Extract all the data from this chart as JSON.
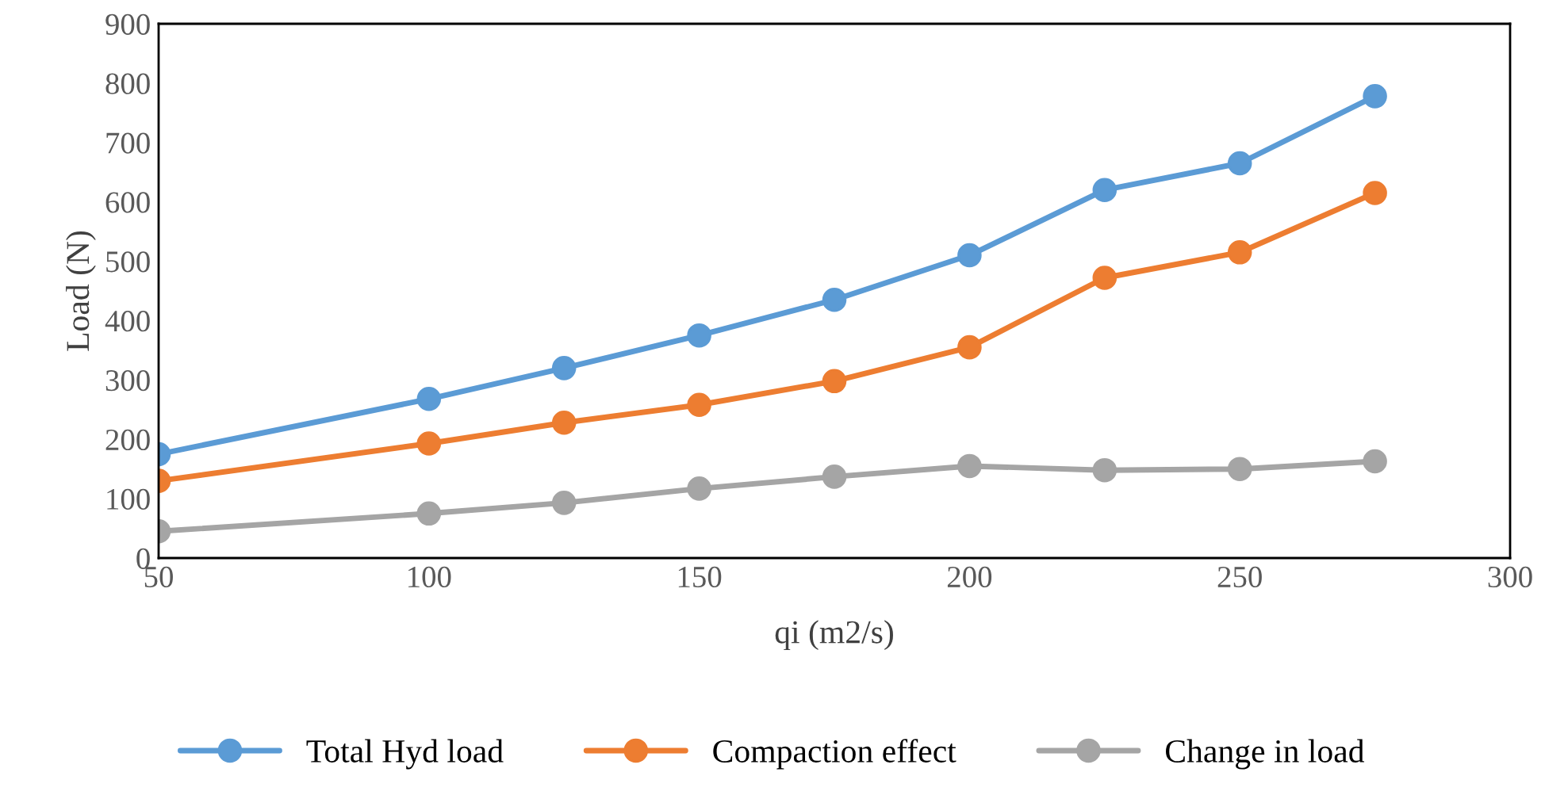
{
  "chart_data": {
    "type": "line",
    "xlabel": "qi (m2/s)",
    "ylabel": "Load (N)",
    "x": [
      50,
      100,
      125,
      150,
      175,
      200,
      225,
      250,
      275
    ],
    "series": [
      {
        "name": "Total Hyd load",
        "color": "#5b9bd5",
        "values": [
          175,
          268,
          320,
          375,
          435,
          510,
          620,
          665,
          778
        ]
      },
      {
        "name": "Compaction effect",
        "color": "#ed7d31",
        "values": [
          130,
          193,
          228,
          258,
          298,
          355,
          472,
          515,
          615
        ]
      },
      {
        "name": "Change in load",
        "color": "#a5a5a5",
        "values": [
          45,
          75,
          93,
          117,
          137,
          155,
          148,
          150,
          163
        ]
      }
    ],
    "xlim": [
      50,
      300
    ],
    "xticks": [
      50,
      100,
      150,
      200,
      250,
      300
    ],
    "ylim": [
      0,
      900
    ],
    "yticks": [
      0,
      100,
      200,
      300,
      400,
      500,
      600,
      700,
      800,
      900
    ],
    "grid": false,
    "legend": "bottom",
    "marker": "circle",
    "line_style": "solid"
  }
}
